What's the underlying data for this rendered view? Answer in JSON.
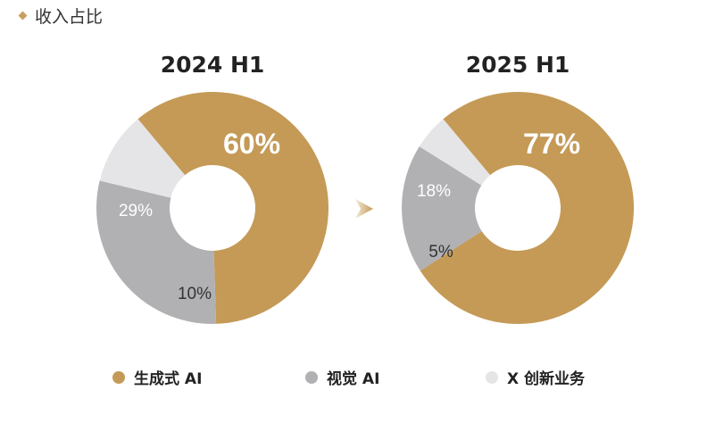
{
  "header": {
    "title": "收入占比"
  },
  "colors": {
    "gold": "#c49a56",
    "gray": "#b1b1b4",
    "light": "#e5e5e7"
  },
  "chart_data": [
    {
      "type": "pie",
      "title": "2024 H1",
      "categories": [
        "生成式 AI",
        "视觉 AI",
        "X 创新业务"
      ],
      "values": [
        60,
        29,
        10
      ],
      "labels": [
        "60%",
        "29%",
        "10%"
      ]
    },
    {
      "type": "pie",
      "title": "2025 H1",
      "categories": [
        "生成式 AI",
        "视觉 AI",
        "X 创新业务"
      ],
      "values": [
        77,
        18,
        5
      ],
      "labels": [
        "77%",
        "18%",
        "5%"
      ]
    }
  ],
  "legend": [
    {
      "label": "生成式 AI",
      "color": "#c49a56"
    },
    {
      "label": "视觉 AI",
      "color": "#b1b1b4"
    },
    {
      "label": "X 创新业务",
      "color": "#e5e5e7"
    }
  ]
}
